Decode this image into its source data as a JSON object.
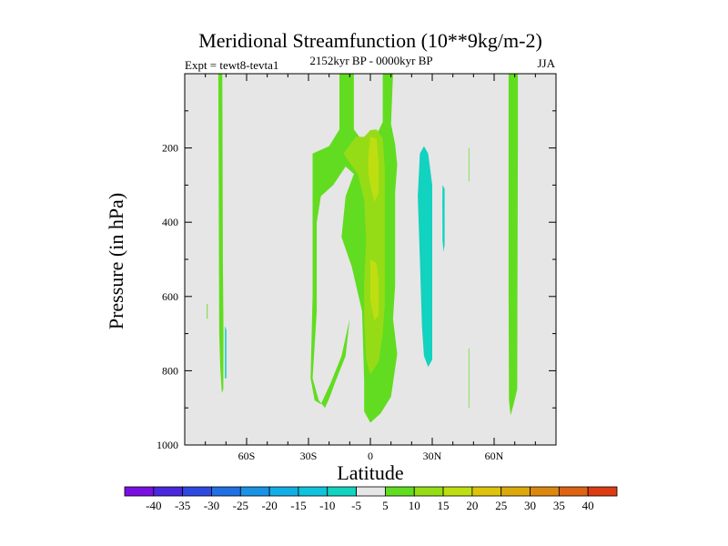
{
  "chart_data": {
    "type": "contour",
    "title": "Meridional Streamfunction (10**9kg/m-2)",
    "subtitle": "2152kyr BP - 0000kyr BP",
    "left_label": "Expt = tewt8-tevta1",
    "right_label": "JJA",
    "xlabel": "Latitude",
    "ylabel": "Pressure (in hPa)",
    "x_range": [
      -90,
      90
    ],
    "y_range": [
      0,
      1000
    ],
    "x_ticks": [
      {
        "value": -60,
        "label": "60S"
      },
      {
        "value": -30,
        "label": "30S"
      },
      {
        "value": 0,
        "label": "0"
      },
      {
        "value": 30,
        "label": "30N"
      },
      {
        "value": 60,
        "label": "60N"
      }
    ],
    "y_ticks": [
      {
        "value": 200,
        "label": "200"
      },
      {
        "value": 400,
        "label": "400"
      },
      {
        "value": 600,
        "label": "600"
      },
      {
        "value": 800,
        "label": "800"
      },
      {
        "value": 1000,
        "label": "1000"
      }
    ],
    "background_color": "#e6e6e6",
    "regions": [
      {
        "name": "eq-band-5",
        "level": 5,
        "points": [
          [
            -28,
            215
          ],
          [
            -20,
            195
          ],
          [
            -15,
            150
          ],
          [
            -15,
            0
          ],
          [
            -8,
            0
          ],
          [
            -8,
            150
          ],
          [
            -2,
            195
          ],
          [
            3,
            165
          ],
          [
            6,
            130
          ],
          [
            6,
            0
          ],
          [
            11,
            0
          ],
          [
            10,
            135
          ],
          [
            12,
            190
          ],
          [
            13,
            245
          ],
          [
            12,
            320
          ],
          [
            12,
            460
          ],
          [
            12,
            570
          ],
          [
            11,
            660
          ],
          [
            13,
            755
          ],
          [
            10,
            870
          ],
          [
            5,
            915
          ],
          [
            0,
            940
          ],
          [
            -3,
            910
          ],
          [
            -3,
            830
          ],
          [
            -4,
            640
          ],
          [
            -9,
            520
          ],
          [
            -14,
            440
          ],
          [
            -12,
            330
          ],
          [
            -8,
            270
          ],
          [
            -12,
            250
          ],
          [
            -18,
            300
          ],
          [
            -24,
            330
          ],
          [
            -26,
            400
          ],
          [
            -26,
            640
          ],
          [
            -28,
            820
          ],
          [
            -25,
            880
          ],
          [
            -22,
            900
          ],
          [
            -20,
            875
          ],
          [
            -17,
            830
          ],
          [
            -12,
            760
          ],
          [
            -10,
            660
          ],
          [
            -14,
            760
          ],
          [
            -19,
            830
          ],
          [
            -24,
            890
          ],
          [
            -27,
            880
          ],
          [
            -29,
            820
          ],
          [
            -28,
            600
          ]
        ]
      },
      {
        "name": "eq-core-10",
        "level": 10,
        "points": [
          [
            -13,
            215
          ],
          [
            -7,
            170
          ],
          [
            -3,
            170
          ],
          [
            0,
            152
          ],
          [
            3,
            150
          ],
          [
            6,
            175
          ],
          [
            7,
            255
          ],
          [
            7,
            320
          ],
          [
            7,
            360
          ],
          [
            7,
            430
          ],
          [
            7,
            520
          ],
          [
            7,
            620
          ],
          [
            6,
            700
          ],
          [
            4,
            775
          ],
          [
            0,
            810
          ],
          [
            -2,
            770
          ],
          [
            -3,
            660
          ],
          [
            -3,
            560
          ],
          [
            -2,
            450
          ],
          [
            -3,
            340
          ],
          [
            -6,
            270
          ],
          [
            -10,
            240
          ]
        ]
      },
      {
        "name": "eq-max-15",
        "level": 15,
        "points": [
          [
            -1,
            225
          ],
          [
            0,
            170
          ],
          [
            3,
            175
          ],
          [
            4,
            240
          ],
          [
            4,
            320
          ],
          [
            2,
            345
          ],
          [
            0,
            300
          ],
          [
            -1,
            265
          ]
        ]
      },
      {
        "name": "eq-low-15",
        "level": 15,
        "points": [
          [
            0,
            500
          ],
          [
            3,
            510
          ],
          [
            4,
            560
          ],
          [
            4,
            650
          ],
          [
            2,
            665
          ],
          [
            0,
            610
          ]
        ]
      },
      {
        "name": "sh-streak",
        "level": 5,
        "points": [
          [
            -73.7,
            0
          ],
          [
            -71.8,
            0
          ],
          [
            -71.7,
            150
          ],
          [
            -71.5,
            500
          ],
          [
            -71.2,
            700
          ],
          [
            -71.3,
            850
          ],
          [
            -72.0,
            860
          ],
          [
            -72.8,
            790
          ],
          [
            -73.3,
            700
          ],
          [
            -73.4,
            500
          ],
          [
            -73.6,
            200
          ]
        ]
      },
      {
        "name": "sh-dot",
        "level": 5,
        "points": [
          [
            -79.3,
            620
          ],
          [
            -78.9,
            620
          ],
          [
            -78.9,
            660
          ],
          [
            -79.3,
            660
          ]
        ]
      },
      {
        "name": "sh-neg-sliver",
        "level": -5,
        "points": [
          [
            -70.5,
            680
          ],
          [
            -69.8,
            690
          ],
          [
            -69.8,
            820
          ],
          [
            -70.5,
            820
          ]
        ]
      },
      {
        "name": "nh-neg-main",
        "level": -5,
        "points": [
          [
            24,
            215
          ],
          [
            26,
            195
          ],
          [
            28,
            215
          ],
          [
            30,
            300
          ],
          [
            30,
            500
          ],
          [
            30,
            620
          ],
          [
            30,
            770
          ],
          [
            28,
            790
          ],
          [
            26,
            760
          ],
          [
            25,
            680
          ],
          [
            24,
            500
          ],
          [
            23,
            330
          ]
        ]
      },
      {
        "name": "nh-neg-small",
        "level": -5,
        "points": [
          [
            35,
            300
          ],
          [
            36,
            310
          ],
          [
            36,
            460
          ],
          [
            35.5,
            480
          ],
          [
            35,
            450
          ],
          [
            34.9,
            350
          ]
        ]
      },
      {
        "name": "nh-pos-thin-1",
        "level": 5,
        "points": [
          [
            47.6,
            200
          ],
          [
            47.9,
            200
          ],
          [
            47.9,
            290
          ],
          [
            47.6,
            290
          ]
        ]
      },
      {
        "name": "nh-pos-thin-2",
        "level": 5,
        "points": [
          [
            47.6,
            740
          ],
          [
            47.9,
            740
          ],
          [
            47.9,
            900
          ],
          [
            47.6,
            900
          ]
        ]
      },
      {
        "name": "nh-streak",
        "level": 5,
        "points": [
          [
            67,
            0
          ],
          [
            71.5,
            0
          ],
          [
            71.5,
            200
          ],
          [
            71.3,
            600
          ],
          [
            71.2,
            850
          ],
          [
            69.5,
            890
          ],
          [
            68,
            920
          ],
          [
            67.2,
            880
          ],
          [
            67,
            600
          ]
        ]
      }
    ],
    "colorbar": {
      "labels": [
        "-40",
        "-35",
        "-30",
        "-25",
        "-20",
        "-15",
        "-10",
        "-5",
        "5",
        "10",
        "15",
        "20",
        "25",
        "30",
        "35",
        "40"
      ],
      "colors": [
        "#7a10e0",
        "#4a28dc",
        "#2f48e0",
        "#2070e4",
        "#1a92e6",
        "#14aee6",
        "#10c2dc",
        "#12d2c0",
        "#e6e6e6",
        "#62dc20",
        "#96dc16",
        "#bede12",
        "#dcc40c",
        "#dca80c",
        "#dc8810",
        "#dc6414",
        "#dc3c14"
      ],
      "level_colors": {
        "-5": "#12d2c0",
        "5": "#62dc20",
        "10": "#96dc16",
        "15": "#bede12"
      }
    }
  }
}
